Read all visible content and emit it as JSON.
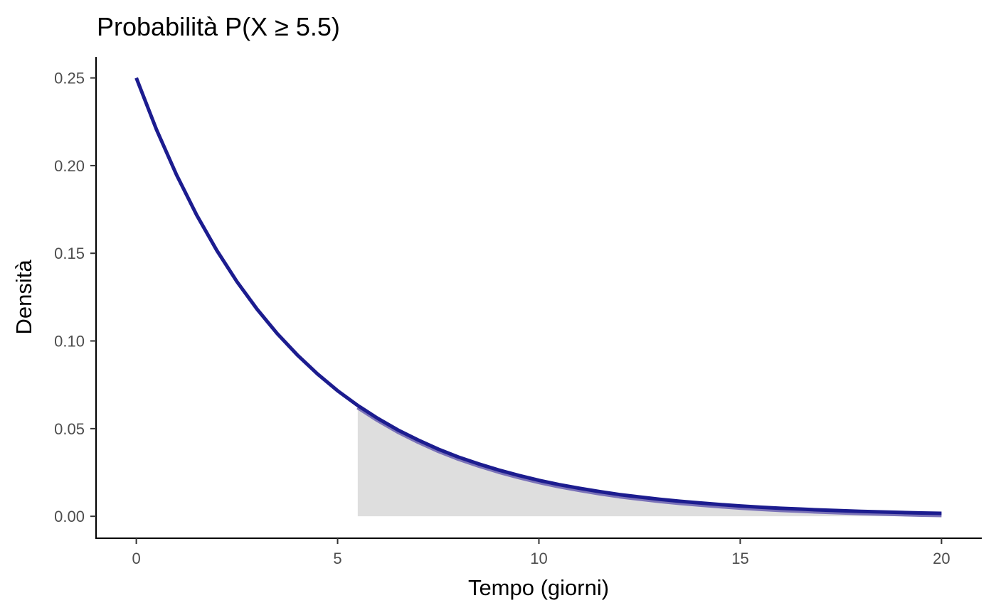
{
  "chart_data": {
    "type": "area",
    "title": "Probabilità P(X ≥ 5.5)",
    "xlabel": "Tempo (giorni)",
    "ylabel": "Densità",
    "xlim": [
      -1,
      21
    ],
    "ylim": [
      -0.0125,
      0.262
    ],
    "x_ticks": [
      0,
      5,
      10,
      15,
      20
    ],
    "x_tick_labels": [
      "0",
      "5",
      "10",
      "15",
      "20"
    ],
    "y_ticks": [
      0,
      0.05,
      0.1,
      0.15,
      0.2,
      0.25
    ],
    "y_tick_labels": [
      "0.00",
      "0.05",
      "0.10",
      "0.15",
      "0.20",
      "0.25"
    ],
    "grid": false,
    "series": [
      {
        "type": "line",
        "x": [
          0,
          0.5,
          1,
          1.5,
          2,
          2.5,
          3,
          3.5,
          4,
          4.5,
          5,
          5.5,
          6,
          6.5,
          7,
          7.5,
          8,
          8.5,
          9,
          9.5,
          10,
          10.5,
          11,
          11.5,
          12,
          12.5,
          13,
          13.5,
          14,
          14.5,
          15,
          15.5,
          16,
          16.5,
          17,
          17.5,
          18,
          18.5,
          19,
          19.5,
          20
        ],
        "y": [
          0.25,
          0.2206,
          0.1947,
          0.1718,
          0.1516,
          0.1338,
          0.1181,
          0.1042,
          0.092,
          0.0812,
          0.0716,
          0.0632,
          0.0558,
          0.0492,
          0.0435,
          0.0383,
          0.0338,
          0.0299,
          0.0264,
          0.0233,
          0.0205,
          0.0181,
          0.016,
          0.0141,
          0.0124,
          0.011,
          0.0097,
          0.0086,
          0.0076,
          0.0067,
          0.0059,
          0.0052,
          0.0046,
          0.0041,
          0.0036,
          0.0032,
          0.0028,
          0.0025,
          0.0022,
          0.0019,
          0.0017
        ],
        "color": "#1c1c8f"
      },
      {
        "type": "area",
        "x": [
          5.5,
          6,
          6.5,
          7,
          7.5,
          8,
          8.5,
          9,
          9.5,
          10,
          10.5,
          11,
          11.5,
          12,
          12.5,
          13,
          13.5,
          14,
          14.5,
          15,
          15.5,
          16,
          16.5,
          17,
          17.5,
          18,
          18.5,
          19,
          19.5,
          20
        ],
        "y": [
          0.0632,
          0.0558,
          0.0492,
          0.0435,
          0.0383,
          0.0338,
          0.0299,
          0.0264,
          0.0233,
          0.0205,
          0.0181,
          0.016,
          0.0141,
          0.0124,
          0.011,
          0.0097,
          0.0086,
          0.0076,
          0.0067,
          0.0059,
          0.0052,
          0.0046,
          0.0041,
          0.0036,
          0.0032,
          0.0028,
          0.0025,
          0.0022,
          0.0019,
          0.0017
        ],
        "fill_color": "#dedede",
        "edge_color": "#7a72b8"
      }
    ]
  }
}
